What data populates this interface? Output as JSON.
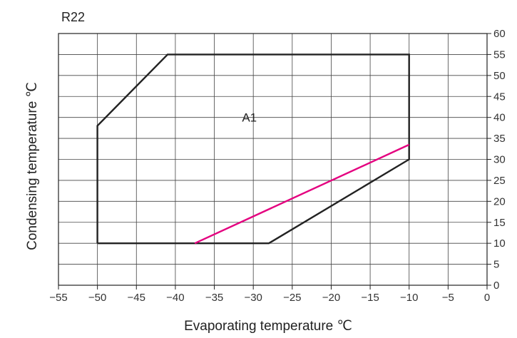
{
  "chart_data": {
    "type": "line",
    "title": "R22",
    "xlabel": "Evaporating temperature ℃",
    "ylabel": "Condensing temperature ℃",
    "xlim": [
      -55,
      0
    ],
    "ylim": [
      0,
      60
    ],
    "x_ticks": [
      -55,
      -50,
      -45,
      -40,
      -35,
      -30,
      -25,
      -20,
      -15,
      -10,
      -5,
      0
    ],
    "y_ticks": [
      0,
      5,
      10,
      15,
      20,
      25,
      30,
      35,
      40,
      45,
      50,
      55,
      60
    ],
    "grid": true,
    "series": [
      {
        "color": "#222222",
        "points": [
          [
            -50,
            10
          ],
          [
            -50,
            38
          ],
          [
            -41,
            55
          ],
          [
            -10,
            55
          ],
          [
            -10,
            30
          ],
          [
            -28,
            10
          ],
          [
            -50,
            10
          ]
        ]
      },
      {
        "color": "#e4007f",
        "points": [
          [
            -37.5,
            10
          ],
          [
            -10,
            33.5
          ]
        ]
      }
    ],
    "annotations": [
      {
        "text": "A1",
        "x": -30.5,
        "y": 40
      }
    ]
  }
}
